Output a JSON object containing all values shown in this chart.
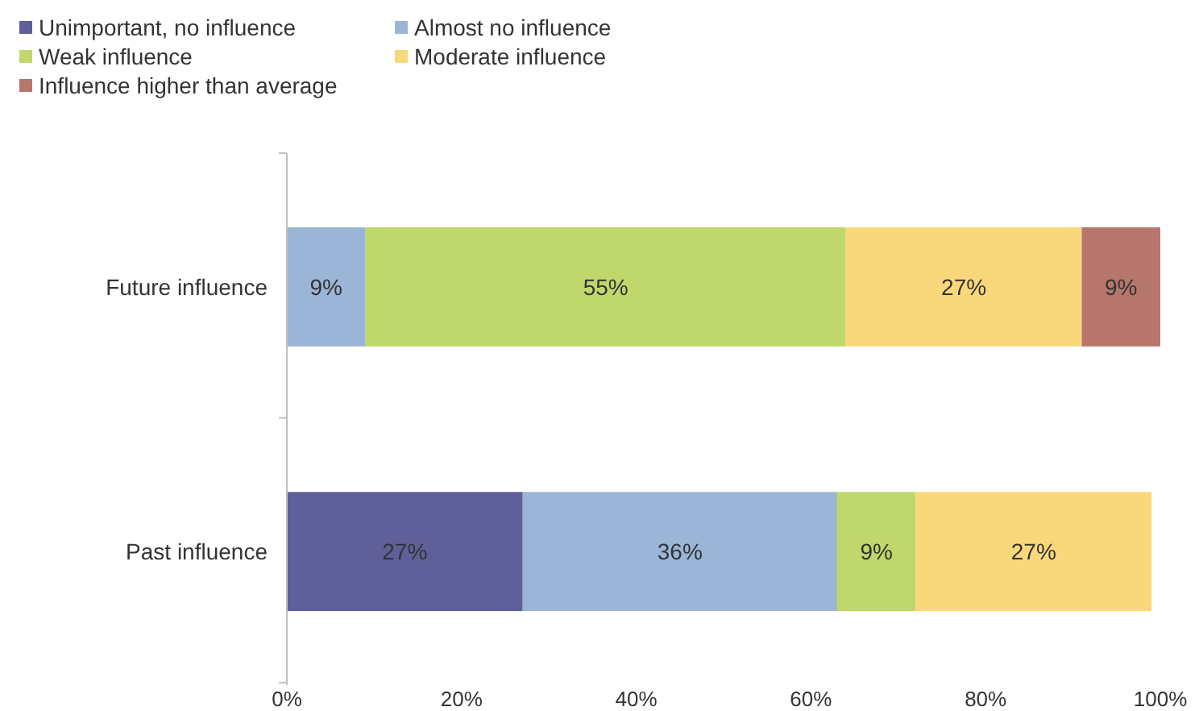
{
  "chart_data": {
    "type": "bar",
    "orientation": "horizontal",
    "stacked": true,
    "categories": [
      "Future influence",
      "Past influence"
    ],
    "series": [
      {
        "name": "Unimportant, no influence",
        "color": "#5f5f99",
        "values": [
          null,
          27
        ],
        "value_labels": [
          null,
          "27%"
        ]
      },
      {
        "name": "Almost no influence",
        "color": "#9bb5d7",
        "values": [
          9,
          36
        ],
        "value_labels": [
          "9%",
          "36%"
        ]
      },
      {
        "name": "Weak influence",
        "color": "#c0d76b",
        "values": [
          55,
          9
        ],
        "value_labels": [
          "55%",
          "9%"
        ]
      },
      {
        "name": "Moderate influence",
        "color": "#f9d87c",
        "values": [
          27,
          27
        ],
        "value_labels": [
          "27%",
          "27%"
        ]
      },
      {
        "name": "Influence higher than average",
        "color": "#b6766b",
        "values": [
          9,
          null
        ],
        "value_labels": [
          "9%",
          null
        ]
      }
    ],
    "xlim": [
      0,
      100
    ],
    "xticks": [
      {
        "value": 0,
        "label": "0%"
      },
      {
        "value": 20,
        "label": "20%"
      },
      {
        "value": 40,
        "label": "40%"
      },
      {
        "value": 60,
        "label": "60%"
      },
      {
        "value": 80,
        "label": "80%"
      },
      {
        "value": 100,
        "label": "100%"
      }
    ],
    "grid": false,
    "legend": "top left"
  }
}
